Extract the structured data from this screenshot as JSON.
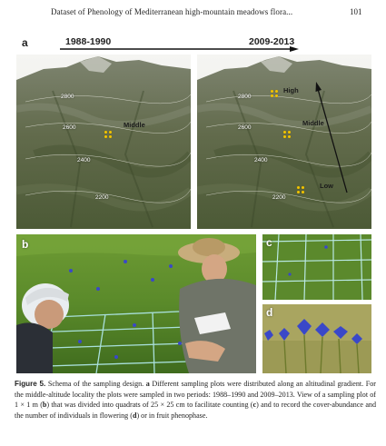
{
  "header": {
    "running_title": "Dataset of Phenology of Mediterranean high-mountain meadows flora...",
    "page_number": "101"
  },
  "figure": {
    "panel_a": {
      "letter": "a",
      "period_left": "1988-1990",
      "period_right": "2009-2013",
      "left_image": {
        "altitudes": [
          "2800",
          "2600",
          "2400",
          "2200"
        ],
        "sites": [
          "Middle"
        ]
      },
      "right_image": {
        "altitudes": [
          "2800",
          "2600",
          "2400",
          "2200"
        ],
        "sites": [
          "High",
          "Middle",
          "Low"
        ]
      }
    },
    "panel_b": {
      "letter": "b"
    },
    "panel_c": {
      "letter": "c"
    },
    "panel_d": {
      "letter": "d"
    }
  },
  "caption": {
    "label": "Figure 5.",
    "title": " Schema of the sampling design. ",
    "part_a_letter": "a",
    "part_a_text": " Different sampling plots were distributed along an altitudinal gradient. For the middle-altitude locality the plots were sampled in two periods: 1988–1990 and 2009–2013. View of a sampling plot of 1 × 1 m (",
    "letter_b": "b",
    "text_2": ") that was divided into quadrats of 25 × 25 cm to facilitate counting (",
    "letter_c": "c",
    "text_3": ") and to record the cover-abundance and the number of individuals in flowering (",
    "letter_d": "d",
    "text_4": ") or in fruit phenophase."
  },
  "colors": {
    "terrain_dark": "#4d5a3a",
    "terrain_light": "#8a8f78",
    "meadow_green": "#5f8a2e",
    "grid_string": "#a9e0dc",
    "flower_blue": "#3a48c8",
    "plot_marker": "#f2c400"
  }
}
